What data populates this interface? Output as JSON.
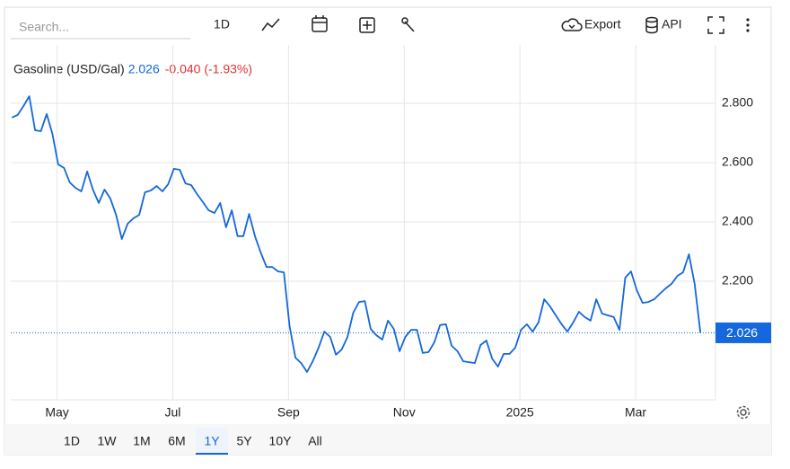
{
  "toolbar": {
    "search": "Search...",
    "interval": "1D",
    "export": "Export",
    "api": "API"
  },
  "ranges": [
    "1D",
    "1W",
    "1M",
    "6M",
    "1Y",
    "5Y",
    "10Y",
    "All"
  ],
  "active_range": 4,
  "chart_data": {
    "type": "line",
    "title": "Gasoline (USD/Gal)",
    "change": "-0.040 (-1.93%)",
    "x": [
      3.22,
      3.32,
      3.42,
      3.52,
      3.62,
      3.72,
      3.82,
      3.92,
      4.02,
      4.12,
      4.22,
      4.32,
      4.42,
      4.52,
      4.62,
      4.72,
      4.82,
      4.92,
      5.02,
      5.12,
      5.22,
      5.32,
      5.42,
      5.52,
      5.62,
      5.72,
      5.82,
      5.92,
      6.02,
      6.12,
      6.22,
      6.32,
      6.42,
      6.52,
      6.62,
      6.72,
      6.82,
      6.92,
      7.02,
      7.12,
      7.22,
      7.32,
      7.42,
      7.52,
      7.62,
      7.72,
      7.82,
      7.92,
      8.02,
      8.12,
      8.22,
      8.32,
      8.42,
      8.52,
      8.62,
      8.72,
      8.82,
      8.92,
      9.02,
      9.12,
      9.22,
      9.32,
      9.42,
      9.52,
      9.62,
      9.72,
      9.82,
      9.92,
      10.02,
      10.12,
      10.22,
      10.32,
      10.42,
      10.52,
      10.62,
      10.72,
      10.82,
      10.92,
      11.02,
      11.12,
      11.22,
      11.32,
      11.42,
      11.52,
      11.62,
      11.72,
      11.82,
      11.92,
      12.02,
      12.12,
      12.22,
      12.32,
      12.42,
      12.52,
      12.62,
      12.72,
      12.82,
      12.92,
      13.02,
      13.12,
      13.22,
      13.32,
      13.42,
      13.52,
      13.62,
      13.72,
      13.82,
      13.92,
      14.02,
      14.12,
      14.22,
      14.32,
      14.42,
      14.52,
      14.62,
      14.72,
      14.82,
      14.92,
      15.02,
      15.12
    ],
    "series": [
      {
        "name": "Gasoline",
        "color": "#1467dc",
        "values": [
          2.752,
          2.761,
          2.791,
          2.824,
          2.709,
          2.706,
          2.764,
          2.697,
          2.594,
          2.582,
          2.533,
          2.515,
          2.503,
          2.57,
          2.509,
          2.464,
          2.509,
          2.479,
          2.424,
          2.342,
          2.394,
          2.412,
          2.424,
          2.5,
          2.506,
          2.521,
          2.503,
          2.527,
          2.579,
          2.576,
          2.53,
          2.524,
          2.494,
          2.467,
          2.439,
          2.43,
          2.464,
          2.382,
          2.439,
          2.352,
          2.352,
          2.427,
          2.352,
          2.297,
          2.248,
          2.248,
          2.233,
          2.23,
          2.048,
          1.942,
          1.924,
          1.894,
          1.93,
          1.976,
          2.03,
          2.012,
          1.952,
          1.97,
          2.012,
          2.094,
          2.13,
          2.133,
          2.039,
          2.018,
          2.003,
          2.067,
          2.039,
          1.964,
          2.012,
          2.036,
          2.036,
          1.958,
          1.961,
          1.994,
          2.052,
          2.055,
          1.982,
          1.964,
          1.93,
          1.927,
          1.924,
          1.985,
          2.0,
          1.939,
          1.912,
          1.955,
          1.955,
          1.976,
          2.036,
          2.055,
          2.03,
          2.061,
          2.139,
          2.115,
          2.085,
          2.055,
          2.03,
          2.061,
          2.097,
          2.079,
          2.067,
          2.139,
          2.091,
          2.085,
          2.079,
          2.036,
          2.212,
          2.233,
          2.17,
          2.127,
          2.13,
          2.139,
          2.158,
          2.176,
          2.191,
          2.218,
          2.23,
          2.291,
          2.191,
          2.026
        ]
      }
    ],
    "xlim": [
      3.2,
      15.38
    ],
    "xticks": [
      {
        "value": 4,
        "label": "May"
      },
      {
        "value": 6,
        "label": "Jul"
      },
      {
        "value": 8,
        "label": "Sep"
      },
      {
        "value": 10,
        "label": "Nov"
      },
      {
        "value": 12,
        "label": "2025"
      },
      {
        "value": 14,
        "label": "Mar"
      }
    ],
    "ylim": [
      1.8,
      2.997
    ],
    "yticks": [
      {
        "value": 2.2,
        "label": "2.200"
      },
      {
        "value": 2.4,
        "label": "2.400"
      },
      {
        "value": 2.6,
        "label": "2.600"
      },
      {
        "value": 2.8,
        "label": "2.800"
      }
    ],
    "grid": true
  }
}
